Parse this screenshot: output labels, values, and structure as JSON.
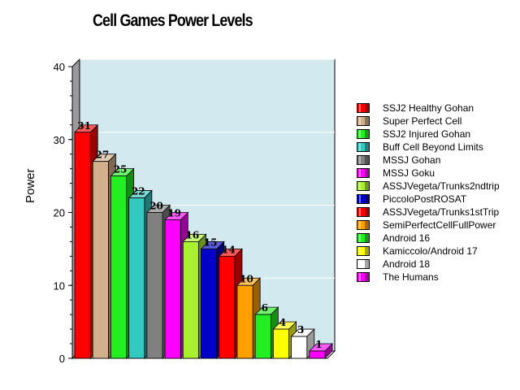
{
  "chart_data": {
    "type": "bar",
    "title": "Cell Games Power Levels",
    "ylabel": "Power",
    "xlabel": "",
    "ylim": [
      0,
      40
    ],
    "yticks": [
      0,
      10,
      20,
      30,
      40
    ],
    "grid": true,
    "legend_position": "right",
    "plot_background": "#d2e9f0",
    "series": [
      {
        "name": "SSJ2 Healthy Gohan",
        "value": 31,
        "color": "#ff0000"
      },
      {
        "name": "Super Perfect Cell",
        "value": 27,
        "color": "#d2b08c"
      },
      {
        "name": "SSJ2 Injured Gohan",
        "value": 25,
        "color": "#22ee22"
      },
      {
        "name": "Buff Cell Beyond Limits",
        "value": 22,
        "color": "#33c8c0"
      },
      {
        "name": "MSSJ Gohan",
        "value": 20,
        "color": "#808080"
      },
      {
        "name": "MSSJ Goku",
        "value": 19,
        "color": "#ff00ff"
      },
      {
        "name": "ASSJVegeta/Trunks2ndtrip",
        "value": 16,
        "color": "#a8f030"
      },
      {
        "name": "PiccoloPostROSAT",
        "value": 15,
        "color": "#0000c8"
      },
      {
        "name": "ASSJVegeta/Trunks1stTrip",
        "value": 14,
        "color": "#ff0000"
      },
      {
        "name": "SemiPerfectCellFullPower",
        "value": 10,
        "color": "#ffa000"
      },
      {
        "name": "Android 16",
        "value": 6,
        "color": "#22ee22"
      },
      {
        "name": "Kamiccolo/Android 17",
        "value": 4,
        "color": "#ffff00"
      },
      {
        "name": "Android 18",
        "value": 3,
        "color": "#ffffff"
      },
      {
        "name": "The Humans",
        "value": 1,
        "color": "#ff00ff"
      }
    ]
  }
}
